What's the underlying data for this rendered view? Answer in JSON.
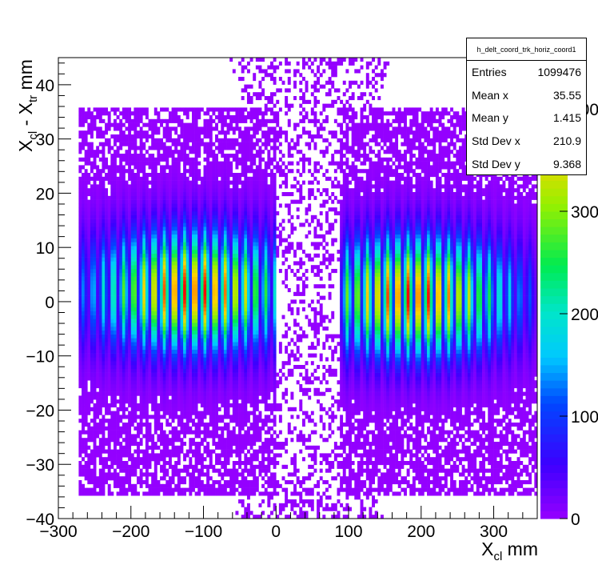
{
  "chart_data": {
    "type": "heatmap",
    "title": "",
    "xlabel": "X_cl mm",
    "ylabel": "X_cl - X_tr mm",
    "xlim": [
      -300,
      360
    ],
    "ylim": [
      -40,
      45
    ],
    "x_ticks": [
      "−300",
      "−200",
      "−100",
      "0",
      "100",
      "200",
      "300"
    ],
    "y_ticks": [
      "−40",
      "−30",
      "−20",
      "−10",
      "0",
      "10",
      "20",
      "30",
      "40"
    ],
    "z_range": [
      0,
      450
    ],
    "z_ticks": [
      "0",
      "100",
      "200",
      "300",
      "400"
    ],
    "palette": "kBird",
    "clusters": [
      {
        "name": "left",
        "x_range": [
          -272,
          0
        ],
        "peak_x": -115,
        "peak_y": 2,
        "peak_z": 450
      },
      {
        "name": "right",
        "x_range": [
          90,
          360
        ],
        "peak_x": 190,
        "peak_y": 1,
        "peak_z": 450
      }
    ],
    "stats": {
      "title": "h_delt_coord_trk_horiz_coord1",
      "rows": [
        {
          "label": "Entries",
          "value": "1099476"
        },
        {
          "label": "Mean x",
          "value": "35.55"
        },
        {
          "label": "Mean y",
          "value": "1.415"
        },
        {
          "label": "Std Dev x",
          "value": "210.9"
        },
        {
          "label": "Std Dev y",
          "value": "9.368"
        }
      ]
    }
  }
}
